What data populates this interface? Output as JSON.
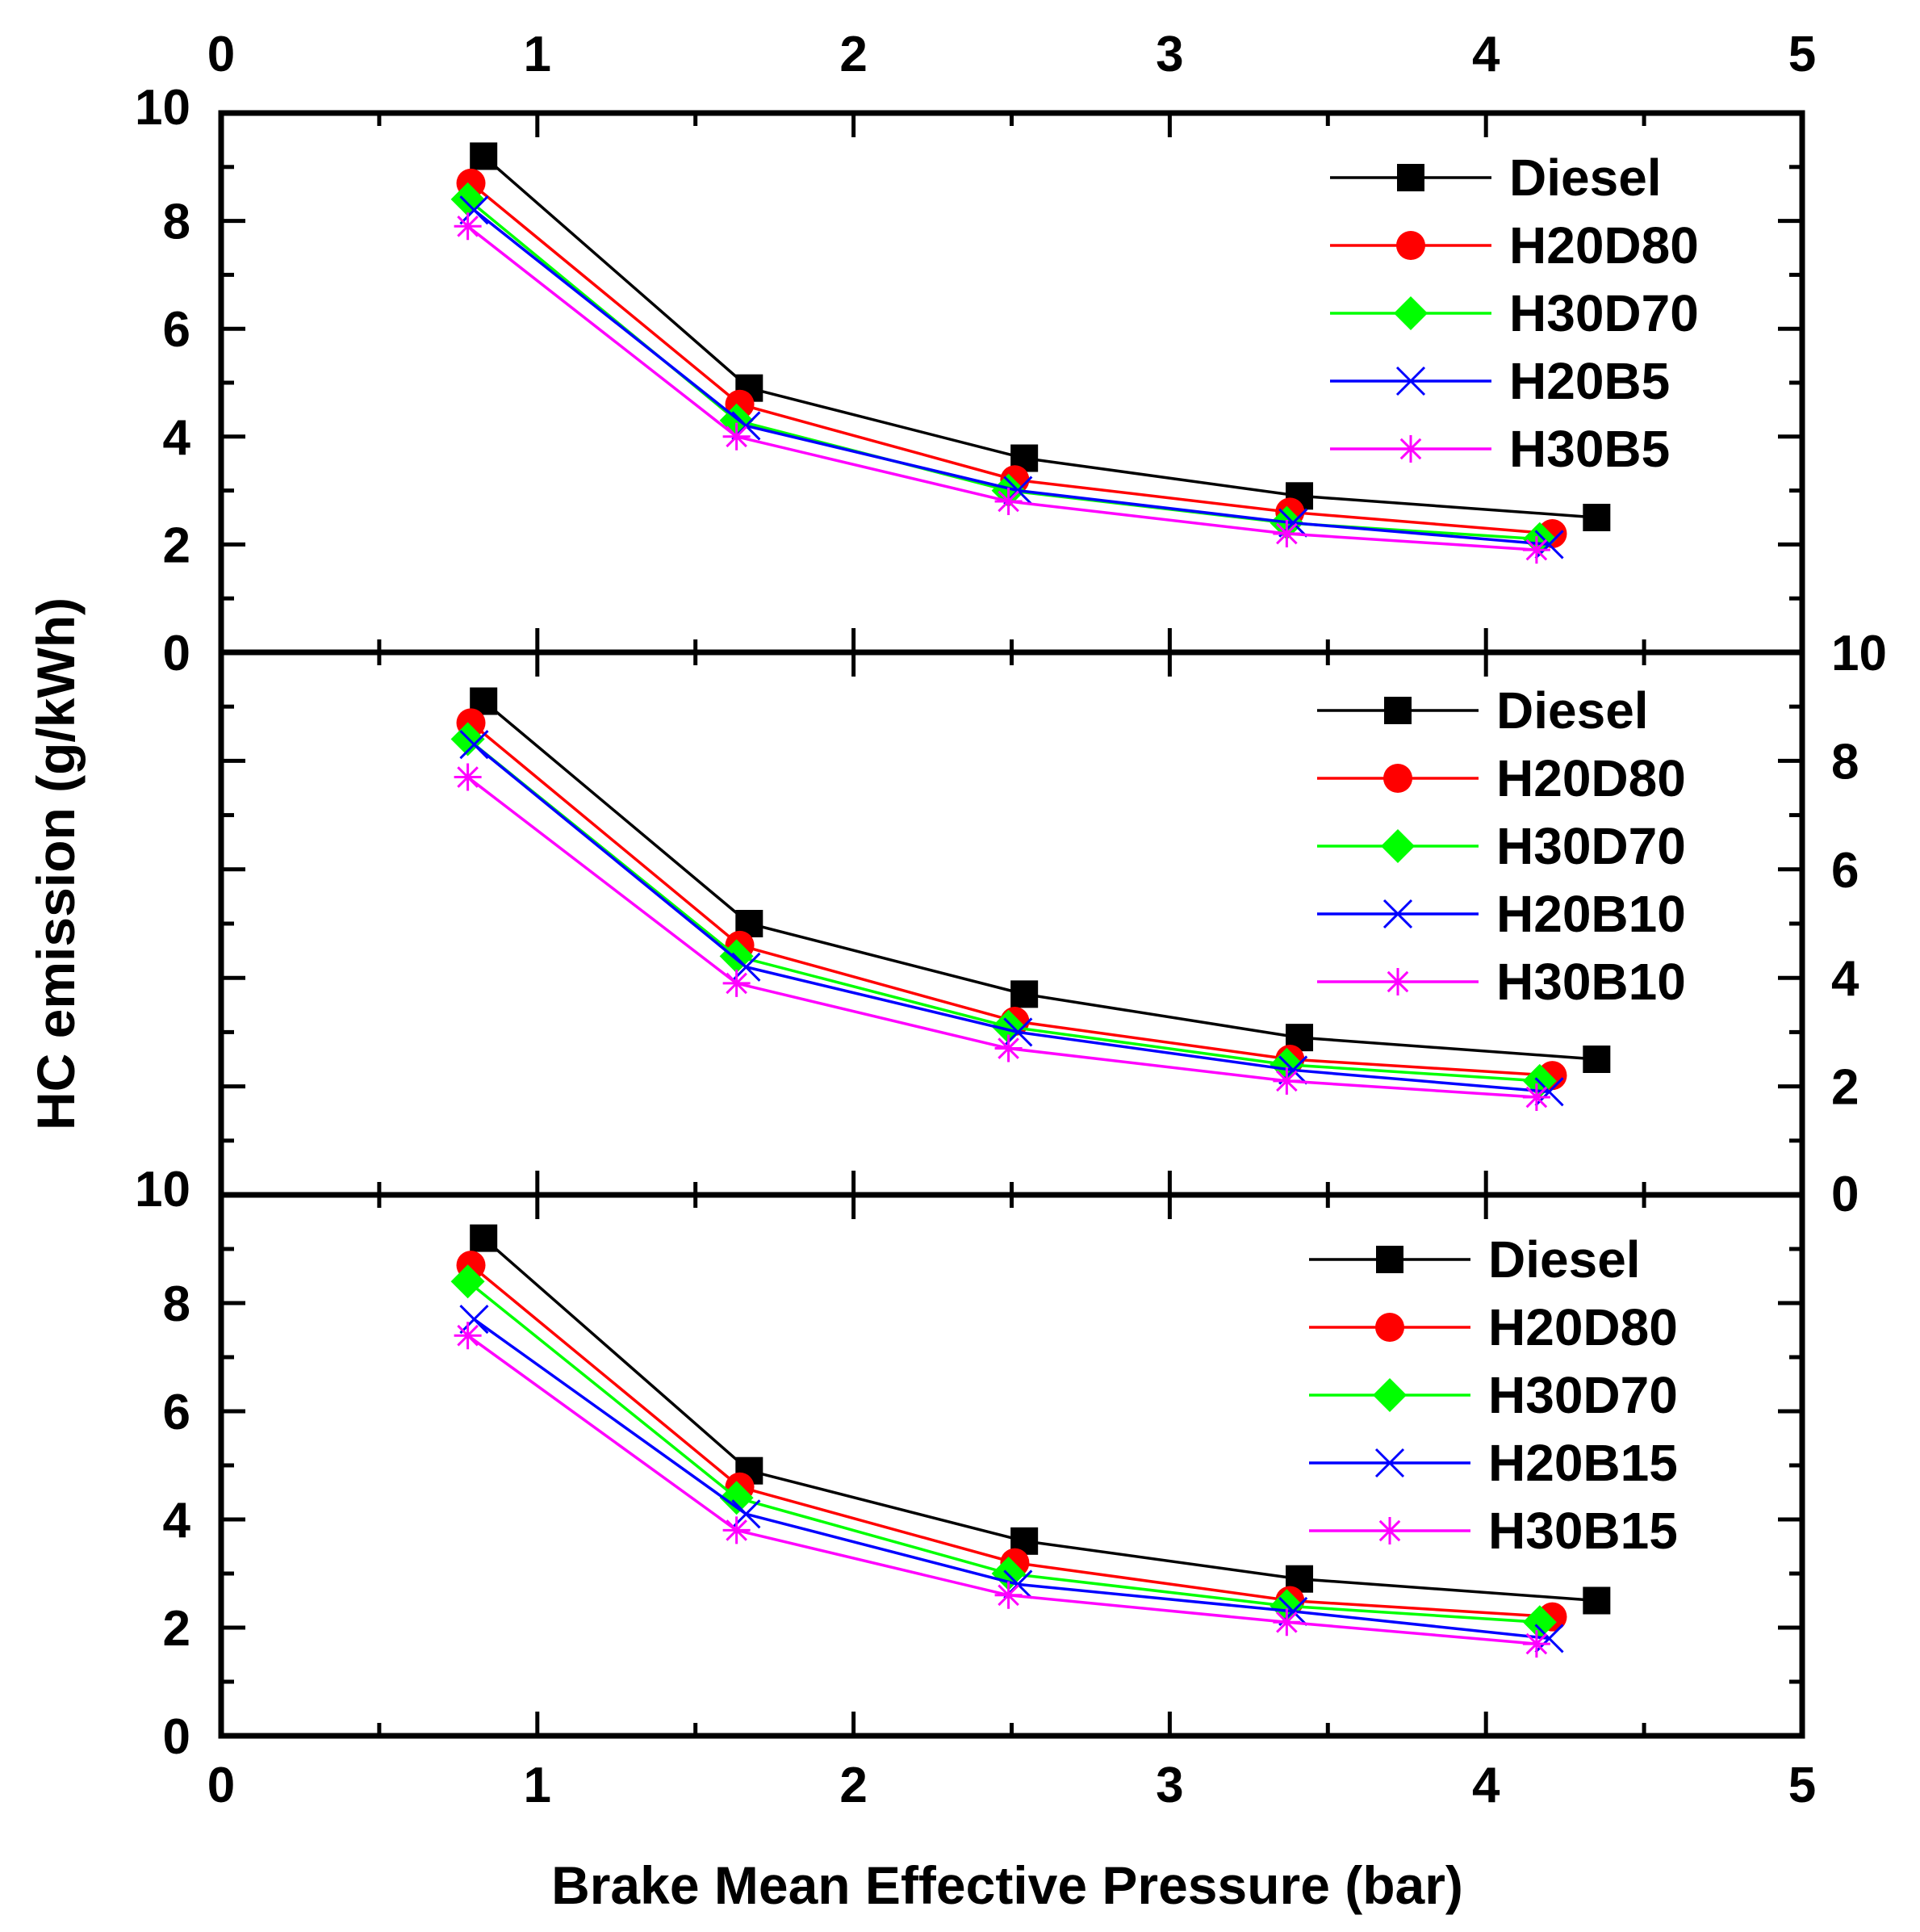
{
  "chart_data": {
    "type": "line",
    "title": "",
    "xlabel": "Brake Mean Effective Pressure (bar)",
    "ylabel": "HC emission (g/kWh)",
    "xlim": [
      0,
      5
    ],
    "x_ticks": [
      0,
      1,
      2,
      3,
      4,
      5
    ],
    "x_tick_labels": [
      "0",
      "1",
      "2",
      "3",
      "4",
      "5"
    ],
    "grid": false,
    "legend_position": "top-right",
    "panels": [
      {
        "name": "panel-top",
        "y_axis_side": "left",
        "ylim": [
          0,
          10
        ],
        "y_tick_labels": [
          "0",
          "2",
          "4",
          "6",
          "8",
          "10"
        ],
        "series": [
          {
            "name": "Diesel",
            "color": "#000000",
            "marker": "square",
            "x": [
              0.83,
              1.67,
              2.54,
              3.41,
              4.35
            ],
            "y": [
              9.2,
              4.9,
              3.6,
              2.9,
              2.5
            ]
          },
          {
            "name": "H20D80",
            "color": "#ff0000",
            "marker": "circle",
            "x": [
              0.79,
              1.64,
              2.51,
              3.38,
              4.21
            ],
            "y": [
              8.7,
              4.6,
              3.2,
              2.6,
              2.2
            ]
          },
          {
            "name": "H30D70",
            "color": "#00ff00",
            "marker": "diamond",
            "x": [
              0.78,
              1.63,
              2.49,
              3.37,
              4.17
            ],
            "y": [
              8.4,
              4.3,
              3.0,
              2.4,
              2.1
            ]
          },
          {
            "name": "H20B5",
            "color": "#0000ff",
            "marker": "x",
            "x": [
              0.8,
              1.66,
              2.52,
              3.39,
              4.2
            ],
            "y": [
              8.2,
              4.2,
              3.0,
              2.4,
              2.0
            ]
          },
          {
            "name": "H30B5",
            "color": "#ff00ff",
            "marker": "asterisk",
            "x": [
              0.78,
              1.63,
              2.49,
              3.37,
              4.16
            ],
            "y": [
              7.9,
              4.0,
              2.8,
              2.2,
              1.9
            ]
          }
        ]
      },
      {
        "name": "panel-middle",
        "y_axis_side": "right",
        "ylim": [
          0,
          10
        ],
        "y_tick_labels": [
          "0",
          "2",
          "4",
          "6",
          "8",
          "10"
        ],
        "series": [
          {
            "name": "Diesel",
            "color": "#000000",
            "marker": "square",
            "x": [
              0.83,
              1.67,
              2.54,
              3.41,
              4.35
            ],
            "y": [
              9.1,
              5.0,
              3.7,
              2.9,
              2.5
            ]
          },
          {
            "name": "H20D80",
            "color": "#ff0000",
            "marker": "circle",
            "x": [
              0.79,
              1.64,
              2.51,
              3.38,
              4.21
            ],
            "y": [
              8.7,
              4.6,
              3.2,
              2.5,
              2.2
            ]
          },
          {
            "name": "H30D70",
            "color": "#00ff00",
            "marker": "diamond",
            "x": [
              0.78,
              1.63,
              2.49,
              3.37,
              4.17
            ],
            "y": [
              8.4,
              4.4,
              3.1,
              2.4,
              2.1
            ]
          },
          {
            "name": "H20B10",
            "color": "#0000ff",
            "marker": "x",
            "x": [
              0.8,
              1.66,
              2.52,
              3.39,
              4.2
            ],
            "y": [
              8.3,
              4.2,
              3.0,
              2.3,
              1.9
            ]
          },
          {
            "name": "H30B10",
            "color": "#ff00ff",
            "marker": "asterisk",
            "x": [
              0.78,
              1.63,
              2.49,
              3.37,
              4.16
            ],
            "y": [
              7.7,
              3.9,
              2.7,
              2.1,
              1.8
            ]
          }
        ]
      },
      {
        "name": "panel-bottom",
        "y_axis_side": "left",
        "ylim": [
          0,
          10
        ],
        "y_tick_labels": [
          "0",
          "2",
          "4",
          "6",
          "8",
          "10"
        ],
        "series": [
          {
            "name": "Diesel",
            "color": "#000000",
            "marker": "square",
            "x": [
              0.83,
              1.67,
              2.54,
              3.41,
              4.35
            ],
            "y": [
              9.2,
              4.9,
              3.6,
              2.9,
              2.5
            ]
          },
          {
            "name": "H20D80",
            "color": "#ff0000",
            "marker": "circle",
            "x": [
              0.79,
              1.64,
              2.51,
              3.38,
              4.21
            ],
            "y": [
              8.7,
              4.6,
              3.2,
              2.5,
              2.2
            ]
          },
          {
            "name": "H30D70",
            "color": "#00ff00",
            "marker": "diamond",
            "x": [
              0.78,
              1.63,
              2.49,
              3.37,
              4.17
            ],
            "y": [
              8.4,
              4.4,
              3.0,
              2.4,
              2.1
            ]
          },
          {
            "name": "H20B15",
            "color": "#0000ff",
            "marker": "x",
            "x": [
              0.8,
              1.66,
              2.52,
              3.39,
              4.2
            ],
            "y": [
              7.7,
              4.1,
              2.8,
              2.3,
              1.8
            ]
          },
          {
            "name": "H30B15",
            "color": "#ff00ff",
            "marker": "asterisk",
            "x": [
              0.78,
              1.63,
              2.49,
              3.37,
              4.16
            ],
            "y": [
              7.4,
              3.8,
              2.6,
              2.1,
              1.7
            ]
          }
        ]
      }
    ]
  }
}
